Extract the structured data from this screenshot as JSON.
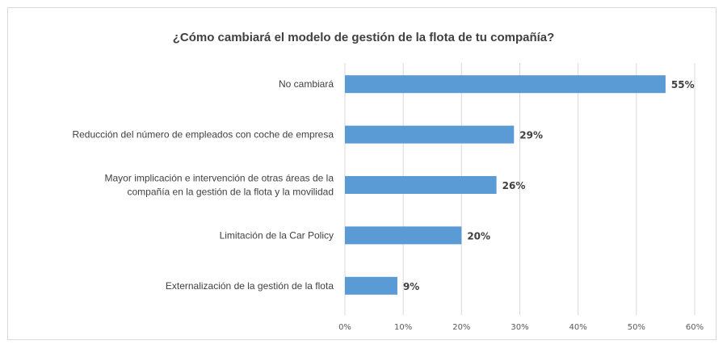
{
  "chart_data": {
    "type": "bar",
    "orientation": "horizontal",
    "title": "¿Cómo cambiará el modelo de gestión de la flota de tu compañía?",
    "categories": [
      [
        "No cambiará"
      ],
      [
        "Reducción del número de empleados con coche de empresa"
      ],
      [
        "Mayor implicación e intervención de otras áreas de la",
        "compañía en la gestión de la flota y la movilidad"
      ],
      [
        "Limitación de la Car Policy"
      ],
      [
        "Externalización de la gestión de la flota"
      ]
    ],
    "values": [
      55,
      29,
      26,
      20,
      9
    ],
    "data_labels": [
      "55%",
      "29%",
      "26%",
      "20%",
      "9%"
    ],
    "xlim": [
      0,
      60
    ],
    "xticks": [
      0,
      10,
      20,
      30,
      40,
      50,
      60
    ],
    "xtick_labels": [
      "0%",
      "10%",
      "20%",
      "30%",
      "40%",
      "50%",
      "60%"
    ],
    "grid": true,
    "bar_color": "#5b9bd5",
    "grid_color": "#d9d9d9"
  }
}
